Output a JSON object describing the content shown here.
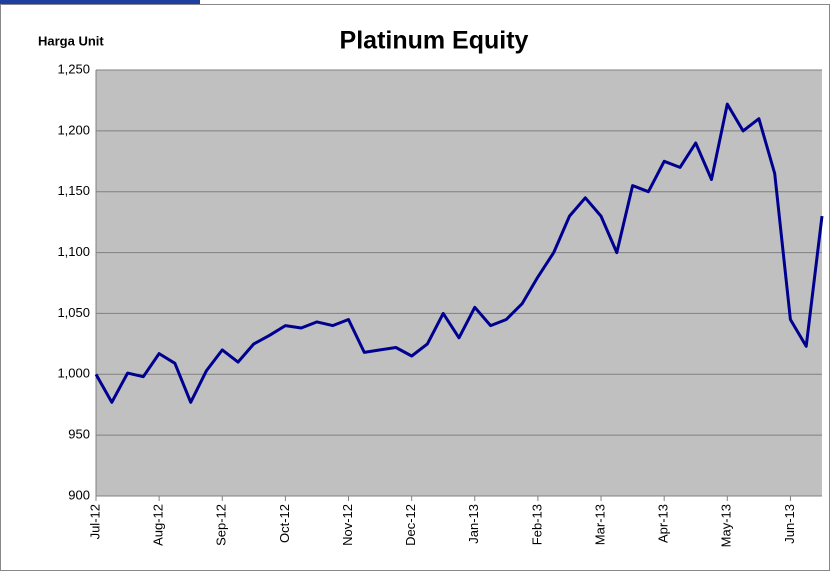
{
  "chart_data": {
    "type": "line",
    "title": "Platinum Equity",
    "ylabel": "Harga Unit",
    "categories": [
      "Jul-12",
      null,
      null,
      null,
      "Aug-12",
      null,
      null,
      null,
      "Sep-12",
      null,
      null,
      null,
      "Oct-12",
      null,
      null,
      null,
      "Nov-12",
      null,
      null,
      null,
      "Dec-12",
      null,
      null,
      null,
      "Jan-13",
      null,
      null,
      null,
      "Feb-13",
      null,
      null,
      null,
      "Mar-13",
      null,
      null,
      null,
      "Apr-13",
      null,
      null,
      null,
      "May-13",
      null,
      null,
      null,
      "Jun-13",
      null,
      null
    ],
    "series": [
      {
        "name": "Platinum Equity",
        "color": "#000090",
        "values": [
          1000,
          977,
          1001,
          998,
          1017,
          1009,
          977,
          1003,
          1020,
          1010,
          1025,
          1032,
          1040,
          1038,
          1043,
          1040,
          1045,
          1018,
          1020,
          1022,
          1015,
          1025,
          1050,
          1030,
          1055,
          1040,
          1045,
          1058,
          1080,
          1100,
          1130,
          1145,
          1130,
          1100,
          1155,
          1150,
          1175,
          1170,
          1190,
          1160,
          1222,
          1200,
          1210,
          1165,
          1045,
          1023,
          1130
        ]
      }
    ],
    "ylim": [
      900,
      1250
    ],
    "yticks": [
      900,
      950,
      {
        "value": 1000,
        "label": "1,000"
      },
      {
        "value": 1050,
        "label": "1,050"
      },
      {
        "value": 1100,
        "label": "1,100"
      },
      {
        "value": 1150,
        "label": "1,150"
      },
      {
        "value": 1200,
        "label": "1,200"
      },
      {
        "value": 1250,
        "label": "1,250"
      }
    ],
    "grid": true
  }
}
